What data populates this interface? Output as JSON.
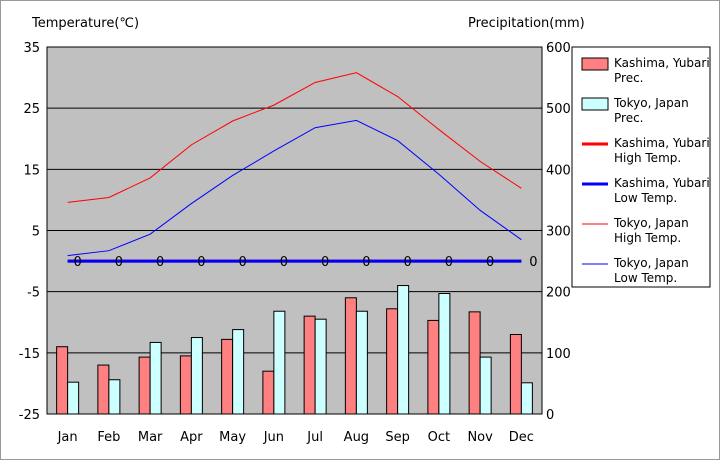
{
  "chart_data": {
    "type": "bar+line",
    "categories": [
      "Jan",
      "Feb",
      "Mar",
      "Apr",
      "May",
      "Jun",
      "Jul",
      "Aug",
      "Sep",
      "Oct",
      "Nov",
      "Dec"
    ],
    "y_left_label": "Temperature(℃)",
    "y_right_label": "Precipitation(mm)",
    "y_left_ticks": [
      "35",
      "25",
      "15",
      "5",
      "-5",
      "-15",
      "-25"
    ],
    "y_right_ticks": [
      "600",
      "500",
      "400",
      "300",
      "200",
      "100",
      "0"
    ],
    "y_left_range": [
      -25,
      35
    ],
    "y_right_range": [
      0,
      600
    ],
    "grid": true,
    "legend_position": "right",
    "series": [
      {
        "name": "Kashima, Yubari\nPrec.",
        "kind": "bar",
        "axis": "right",
        "color": "#ff8080",
        "values": [
          110,
          80,
          93,
          95,
          122,
          70,
          160,
          190,
          172,
          153,
          167,
          130
        ]
      },
      {
        "name": "Tokyo, Japan\nPrec.",
        "kind": "bar",
        "axis": "right",
        "color": "#ccffff",
        "values": [
          52,
          56,
          117,
          125,
          138,
          168,
          155,
          168,
          210,
          197,
          93,
          51
        ]
      },
      {
        "name": "Kashima, Yubari\nHigh Temp.",
        "kind": "line",
        "axis": "left",
        "color": "#ff0000",
        "width": 3,
        "values": [
          0,
          0,
          0,
          0,
          0,
          0,
          0,
          0,
          0,
          0,
          0,
          0
        ],
        "data_labels": [
          "0",
          "0",
          "0",
          "0",
          "0",
          "0",
          "0",
          "0",
          "0",
          "0",
          "0",
          "0"
        ]
      },
      {
        "name": "Kashima, Yubari\nLow Temp.",
        "kind": "line",
        "axis": "left",
        "color": "#0000ff",
        "width": 3,
        "values": [
          0,
          0,
          0,
          0,
          0,
          0,
          0,
          0,
          0,
          0,
          0,
          0
        ],
        "data_labels": [
          "0",
          "0",
          "0",
          "0",
          "0",
          "0",
          "0",
          "0",
          "0",
          "0",
          "0",
          "0"
        ]
      },
      {
        "name": "Tokyo, Japan\nHigh Temp.",
        "kind": "line",
        "axis": "left",
        "color": "#ff0000",
        "width": 1,
        "values": [
          9.6,
          10.4,
          13.6,
          19.0,
          22.9,
          25.5,
          29.2,
          30.8,
          26.9,
          21.5,
          16.3,
          11.9
        ]
      },
      {
        "name": "Tokyo, Japan\nLow Temp.",
        "kind": "line",
        "axis": "left",
        "color": "#0000ff",
        "width": 1,
        "values": [
          0.9,
          1.7,
          4.4,
          9.4,
          14.0,
          18.0,
          21.8,
          23.0,
          19.7,
          14.2,
          8.3,
          3.5
        ]
      }
    ]
  }
}
